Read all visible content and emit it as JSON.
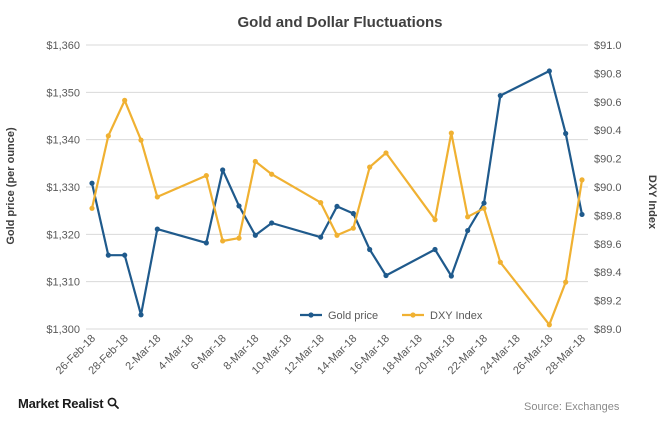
{
  "chart_data": {
    "type": "line",
    "title": "Gold and Dollar Fluctuations",
    "ylabel_left": "Gold price (per ounce)",
    "ylabel_right": "DXY Index",
    "x_tick_labels": [
      "26-Feb-18",
      "28-Feb-18",
      "2-Mar-18",
      "4-Mar-18",
      "6-Mar-18",
      "8-Mar-18",
      "10-Mar-18",
      "12-Mar-18",
      "14-Mar-18",
      "16-Mar-18",
      "18-Mar-18",
      "20-Mar-18",
      "22-Mar-18",
      "24-Mar-18",
      "26-Mar-18",
      "28-Mar-18"
    ],
    "y_left_ticks": [
      "$1,300",
      "$1,310",
      "$1,320",
      "$1,330",
      "$1,340",
      "$1,350",
      "$1,360"
    ],
    "y_right_ticks": [
      "$89.0",
      "$89.2",
      "$89.4",
      "$89.6",
      "$89.8",
      "$90.0",
      "$90.2",
      "$90.4",
      "$90.6",
      "$90.8",
      "$91.0"
    ],
    "ylim_left": [
      1300,
      1360
    ],
    "ylim_right": [
      89.0,
      91.0
    ],
    "grid": true,
    "legend_position": "bottom-center",
    "series": [
      {
        "name": "Gold price",
        "axis": "left",
        "color": "#1f5a8c",
        "points": [
          [
            "26-Feb-18",
            1330.8
          ],
          [
            "27-Feb-18",
            1315.6
          ],
          [
            "28-Feb-18",
            1315.6
          ],
          [
            "1-Mar-18",
            1303.0
          ],
          [
            "2-Mar-18",
            1321.1
          ],
          [
            "5-Mar-18",
            1318.2
          ],
          [
            "6-Mar-18",
            1333.6
          ],
          [
            "7-Mar-18",
            1326.0
          ],
          [
            "8-Mar-18",
            1319.8
          ],
          [
            "9-Mar-18",
            1322.4
          ],
          [
            "12-Mar-18",
            1319.4
          ],
          [
            "13-Mar-18",
            1325.9
          ],
          [
            "14-Mar-18",
            1324.4
          ],
          [
            "15-Mar-18",
            1316.8
          ],
          [
            "16-Mar-18",
            1311.3
          ],
          [
            "19-Mar-18",
            1316.8
          ],
          [
            "20-Mar-18",
            1311.2
          ],
          [
            "21-Mar-18",
            1320.8
          ],
          [
            "22-Mar-18",
            1326.6
          ],
          [
            "23-Mar-18",
            1349.3
          ],
          [
            "26-Mar-18",
            1354.5
          ],
          [
            "27-Mar-18",
            1341.3
          ],
          [
            "28-Mar-18",
            1324.2
          ]
        ]
      },
      {
        "name": "DXY Index",
        "axis": "right",
        "color": "#f0b132",
        "points": [
          [
            "26-Feb-18",
            89.85
          ],
          [
            "27-Feb-18",
            90.36
          ],
          [
            "28-Feb-18",
            90.61
          ],
          [
            "1-Mar-18",
            90.33
          ],
          [
            "2-Mar-18",
            89.93
          ],
          [
            "5-Mar-18",
            90.08
          ],
          [
            "6-Mar-18",
            89.62
          ],
          [
            "7-Mar-18",
            89.64
          ],
          [
            "8-Mar-18",
            90.18
          ],
          [
            "9-Mar-18",
            90.09
          ],
          [
            "12-Mar-18",
            89.89
          ],
          [
            "13-Mar-18",
            89.66
          ],
          [
            "14-Mar-18",
            89.71
          ],
          [
            "15-Mar-18",
            90.14
          ],
          [
            "16-Mar-18",
            90.24
          ],
          [
            "19-Mar-18",
            89.77
          ],
          [
            "20-Mar-18",
            90.38
          ],
          [
            "21-Mar-18",
            89.79
          ],
          [
            "22-Mar-18",
            89.85
          ],
          [
            "23-Mar-18",
            89.47
          ],
          [
            "26-Mar-18",
            89.03
          ],
          [
            "27-Mar-18",
            89.33
          ],
          [
            "28-Mar-18",
            90.05
          ]
        ]
      }
    ]
  },
  "footer": {
    "brand_main": "Market Realist",
    "brand_mark": "Q",
    "source": "Source: Exchanges"
  }
}
